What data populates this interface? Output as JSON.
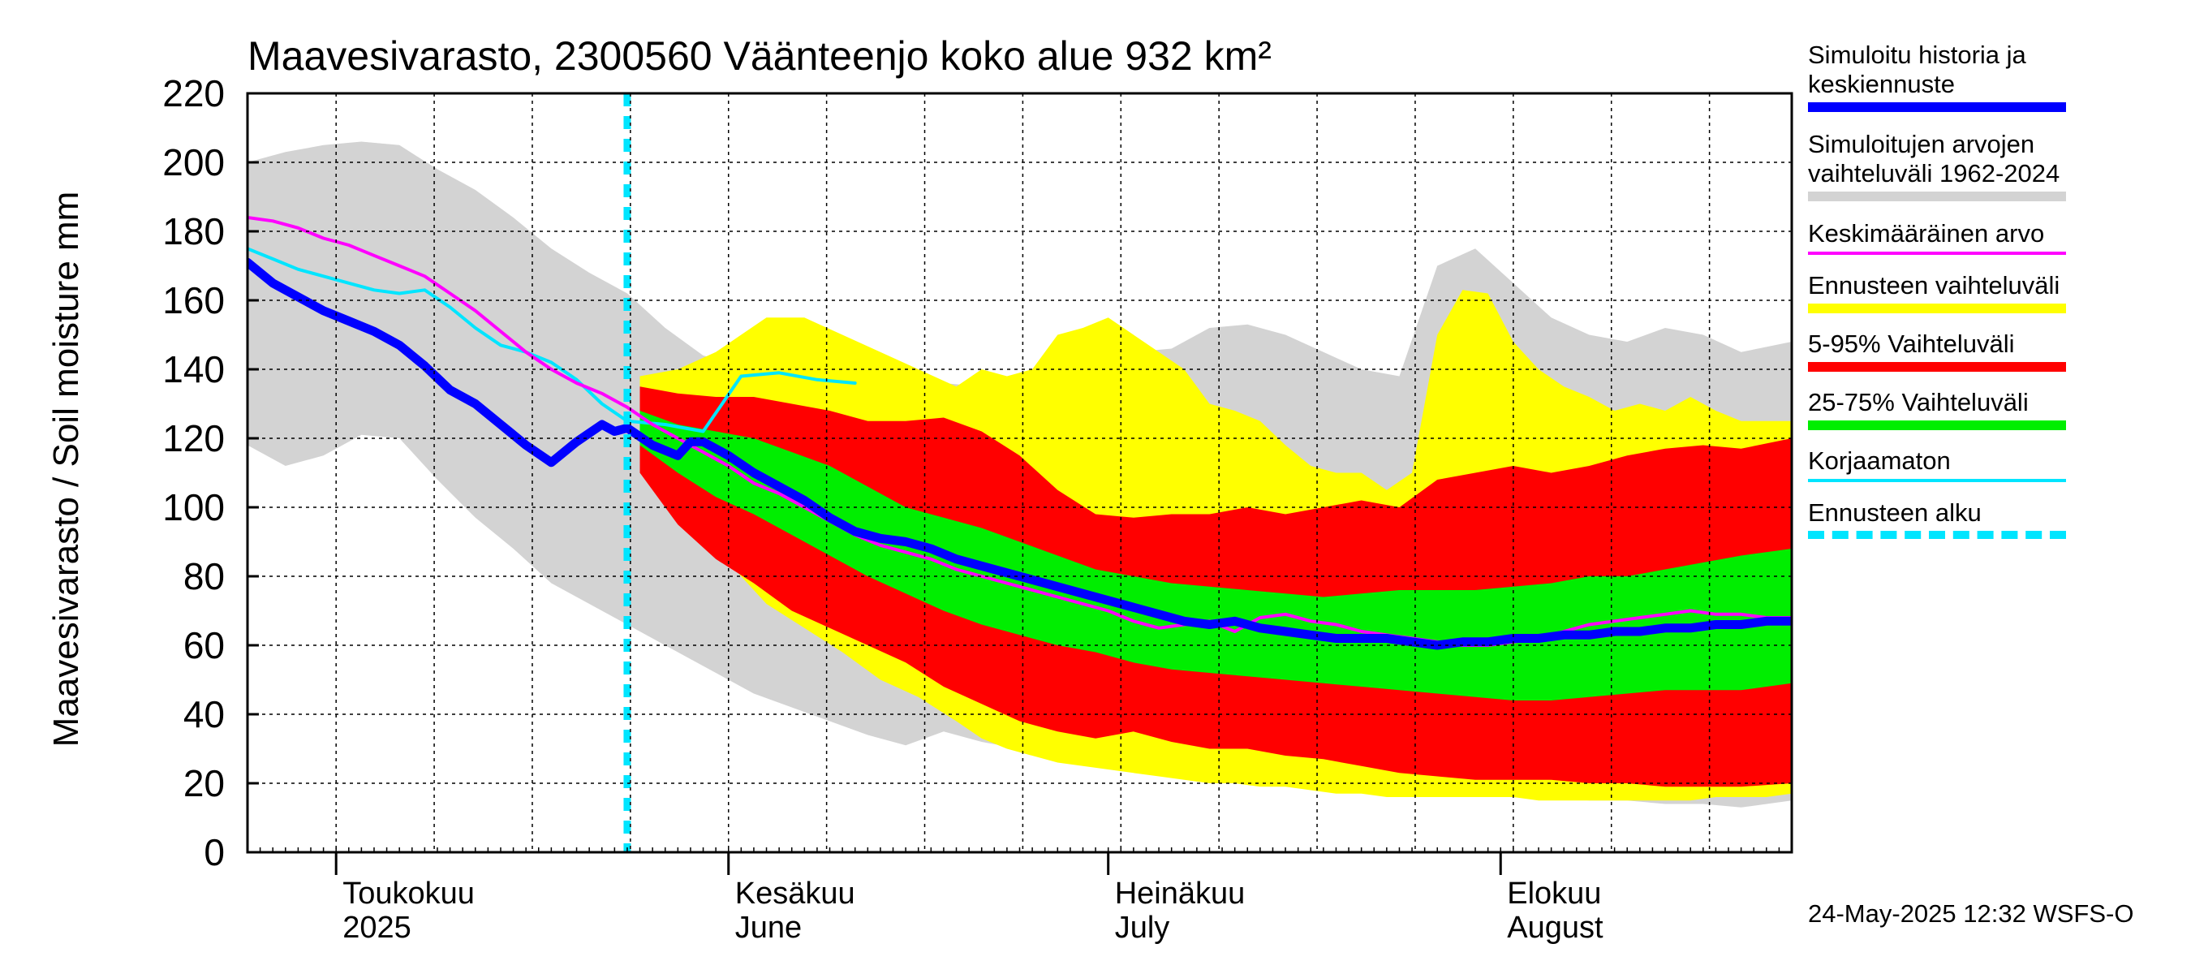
{
  "chart_data": {
    "type": "area",
    "title": "Maavesivarasto, 2300560 Väänteenjo koko alue 932 km²",
    "ylabel": "Maavesivarasto / Soil moisture   mm",
    "ylim": [
      0,
      220
    ],
    "yticks": [
      0,
      20,
      40,
      60,
      80,
      100,
      120,
      140,
      160,
      180,
      200,
      220
    ],
    "x_domain_days": [
      0,
      122
    ],
    "x_domain_note": "day 0 = 2025-04-24, day 122 = 2025-08-24",
    "month_ticks": [
      {
        "day": 7,
        "line1": "Toukokuu",
        "line2": "2025"
      },
      {
        "day": 38,
        "line1": "Kesäkuu",
        "line2": "June"
      },
      {
        "day": 68,
        "line1": "Heinäkuu",
        "line2": "July"
      },
      {
        "day": 99,
        "line1": "Elokuu",
        "line2": "August"
      }
    ],
    "forecast_start_day": 30,
    "series": [
      {
        "name": "Simuloitujen arvojen vaihteluväli 1962-2024",
        "role": "band",
        "color": "#d3d3d3",
        "x": [
          0,
          3,
          6,
          9,
          12,
          15,
          18,
          21,
          24,
          27,
          30,
          33,
          36,
          38,
          40,
          43,
          46,
          49,
          52,
          55,
          58,
          61,
          64,
          67,
          70,
          73,
          76,
          79,
          82,
          85,
          88,
          91,
          94,
          97,
          100,
          103,
          106,
          109,
          112,
          115,
          118,
          122
        ],
        "upper": [
          200,
          203,
          205,
          206,
          205,
          198,
          192,
          184,
          175,
          168,
          162,
          152,
          144,
          142,
          140,
          138,
          137,
          136,
          135,
          136,
          135,
          137,
          139,
          141,
          145,
          146,
          152,
          153,
          150,
          145,
          140,
          138,
          170,
          175,
          165,
          155,
          150,
          148,
          152,
          150,
          145,
          148
        ],
        "lower": [
          118,
          112,
          115,
          121,
          120,
          108,
          97,
          88,
          78,
          72,
          66,
          60,
          54,
          50,
          46,
          42,
          38,
          34,
          31,
          35,
          32,
          30,
          28,
          27,
          25,
          24,
          22,
          21,
          20,
          20,
          19,
          18,
          17,
          16,
          17,
          16,
          15,
          15,
          14,
          14,
          13,
          15
        ]
      },
      {
        "name": "Ennusteen vaihteluväli",
        "role": "band",
        "color": "#ffff00",
        "x": [
          31,
          34,
          37,
          39,
          41,
          44,
          47,
          50,
          53,
          56,
          58,
          60,
          62,
          64,
          66,
          68,
          70,
          72,
          74,
          76,
          78,
          80,
          82,
          84,
          86,
          88,
          90,
          92,
          94,
          96,
          98,
          100,
          102,
          104,
          106,
          108,
          110,
          112,
          114,
          116,
          118,
          120,
          122
        ],
        "upper": [
          138,
          140,
          145,
          150,
          155,
          155,
          150,
          145,
          140,
          135,
          140,
          138,
          140,
          150,
          152,
          155,
          150,
          145,
          140,
          130,
          128,
          125,
          118,
          112,
          110,
          110,
          105,
          110,
          150,
          163,
          162,
          148,
          140,
          135,
          132,
          128,
          130,
          128,
          132,
          128,
          125,
          125,
          125
        ],
        "lower": [
          110,
          98,
          88,
          80,
          72,
          65,
          58,
          50,
          45,
          38,
          33,
          30,
          28,
          26,
          25,
          24,
          23,
          22,
          21,
          20,
          20,
          19,
          19,
          18,
          17,
          17,
          16,
          16,
          16,
          16,
          16,
          16,
          15,
          15,
          15,
          15,
          15,
          15,
          15,
          16,
          16,
          16,
          17
        ]
      },
      {
        "name": "5-95% Vaihteluväli",
        "role": "band",
        "color": "#ff0000",
        "x": [
          31,
          34,
          37,
          40,
          43,
          46,
          49,
          52,
          55,
          58,
          61,
          64,
          67,
          70,
          73,
          76,
          79,
          82,
          85,
          88,
          91,
          94,
          97,
          100,
          103,
          106,
          109,
          112,
          115,
          118,
          122
        ],
        "upper": [
          135,
          133,
          132,
          132,
          130,
          128,
          125,
          125,
          126,
          122,
          115,
          105,
          98,
          97,
          98,
          98,
          100,
          98,
          100,
          102,
          100,
          108,
          110,
          112,
          110,
          112,
          115,
          117,
          118,
          117,
          120
        ],
        "lower": [
          110,
          95,
          85,
          78,
          70,
          65,
          60,
          55,
          48,
          43,
          38,
          35,
          33,
          35,
          32,
          30,
          30,
          28,
          27,
          25,
          23,
          22,
          21,
          21,
          21,
          20,
          20,
          19,
          19,
          19,
          20
        ]
      },
      {
        "name": "25-75% Vaihteluväli",
        "role": "band",
        "color": "#00ee00",
        "x": [
          31,
          34,
          37,
          40,
          43,
          46,
          49,
          52,
          55,
          58,
          61,
          64,
          67,
          70,
          73,
          76,
          79,
          82,
          85,
          88,
          91,
          94,
          97,
          100,
          103,
          106,
          109,
          112,
          115,
          118,
          122
        ],
        "upper": [
          128,
          124,
          122,
          120,
          116,
          112,
          106,
          100,
          97,
          94,
          90,
          86,
          82,
          80,
          78,
          77,
          76,
          75,
          74,
          75,
          76,
          76,
          76,
          77,
          78,
          80,
          80,
          82,
          84,
          86,
          88
        ],
        "lower": [
          118,
          110,
          103,
          98,
          92,
          86,
          80,
          75,
          70,
          66,
          63,
          60,
          58,
          55,
          53,
          52,
          51,
          50,
          49,
          48,
          47,
          46,
          45,
          44,
          44,
          45,
          46,
          47,
          47,
          47,
          49
        ]
      },
      {
        "name": "Korjaamaton",
        "role": "line",
        "color": "#00e5ff",
        "width": 4,
        "x": [
          0,
          2,
          4,
          6,
          8,
          10,
          12,
          14,
          16,
          18,
          20,
          22,
          24,
          26,
          28,
          30,
          33,
          36,
          39,
          42,
          45,
          48
        ],
        "y": [
          175,
          172,
          169,
          167,
          165,
          163,
          162,
          163,
          158,
          152,
          147,
          145,
          142,
          137,
          130,
          125,
          124,
          122,
          138,
          139,
          137,
          136
        ]
      },
      {
        "name": "Keskimääräinen arvo",
        "role": "line",
        "color": "#ff00ff",
        "width": 4,
        "x": [
          0,
          2,
          4,
          6,
          8,
          10,
          12,
          14,
          16,
          18,
          20,
          22,
          24,
          26,
          28,
          30,
          32,
          34,
          36,
          38,
          40,
          42,
          44,
          46,
          48,
          50,
          52,
          54,
          56,
          58,
          60,
          62,
          64,
          66,
          68,
          70,
          72,
          74,
          76,
          78,
          80,
          82,
          84,
          86,
          88,
          90,
          92,
          94,
          96,
          98,
          100,
          102,
          104,
          106,
          108,
          110,
          112,
          114,
          116,
          118,
          120,
          122
        ],
        "y": [
          184,
          183,
          181,
          178,
          176,
          173,
          170,
          167,
          162,
          157,
          151,
          145,
          140,
          136,
          133,
          129,
          124,
          120,
          116,
          112,
          107,
          104,
          100,
          96,
          92,
          89,
          87,
          85,
          82,
          80,
          78,
          76,
          74,
          72,
          70,
          67,
          65,
          66,
          67,
          64,
          68,
          69,
          67,
          66,
          64,
          63,
          62,
          61,
          60,
          60,
          61,
          62,
          64,
          66,
          67,
          68,
          69,
          70,
          69,
          69,
          68,
          68
        ]
      },
      {
        "name": "Simuloitu historia ja keskiennuste",
        "role": "line",
        "color": "#0000ff",
        "width": 11,
        "x": [
          0,
          2,
          4,
          6,
          8,
          10,
          12,
          14,
          16,
          18,
          20,
          22,
          24,
          26,
          28,
          29,
          30,
          32,
          34,
          35,
          36,
          38,
          40,
          42,
          44,
          46,
          48,
          50,
          52,
          54,
          56,
          58,
          60,
          62,
          64,
          66,
          68,
          70,
          72,
          74,
          76,
          78,
          80,
          82,
          84,
          86,
          88,
          90,
          92,
          94,
          96,
          98,
          100,
          102,
          104,
          106,
          108,
          110,
          112,
          114,
          116,
          118,
          120,
          122
        ],
        "y": [
          171,
          165,
          161,
          157,
          154,
          151,
          147,
          141,
          134,
          130,
          124,
          118,
          113,
          119,
          124,
          122,
          123,
          118,
          115,
          119,
          119,
          115,
          110,
          106,
          102,
          97,
          93,
          91,
          90,
          88,
          85,
          83,
          81,
          79,
          77,
          75,
          73,
          71,
          69,
          67,
          66,
          67,
          65,
          64,
          63,
          62,
          62,
          62,
          61,
          60,
          61,
          61,
          62,
          62,
          63,
          63,
          64,
          64,
          65,
          65,
          66,
          66,
          67,
          67
        ]
      }
    ],
    "legend": [
      {
        "label": "Simuloitu historia ja\nkeskiennuste",
        "color": "#0000ff",
        "style": "thick"
      },
      {
        "label": "Simuloitujen arvojen\nvaihteluväli 1962-2024",
        "color": "#d3d3d3",
        "style": "thick"
      },
      {
        "label": "Keskimääräinen arvo",
        "color": "#ff00ff",
        "style": "thin"
      },
      {
        "label": "Ennusteen vaihteluväli",
        "color": "#ffff00",
        "style": "thick"
      },
      {
        "label": "5-95% Vaihteluväli",
        "color": "#ff0000",
        "style": "thick"
      },
      {
        "label": "25-75% Vaihteluväli",
        "color": "#00ee00",
        "style": "thick"
      },
      {
        "label": "Korjaamaton",
        "color": "#00e5ff",
        "style": "thin"
      },
      {
        "label": "Ennusteen alku",
        "color": "#00e5ff",
        "style": "dashed"
      }
    ],
    "grid": true,
    "legend_position": "right",
    "footer_stamp": "24-May-2025 12:32 WSFS-O"
  }
}
